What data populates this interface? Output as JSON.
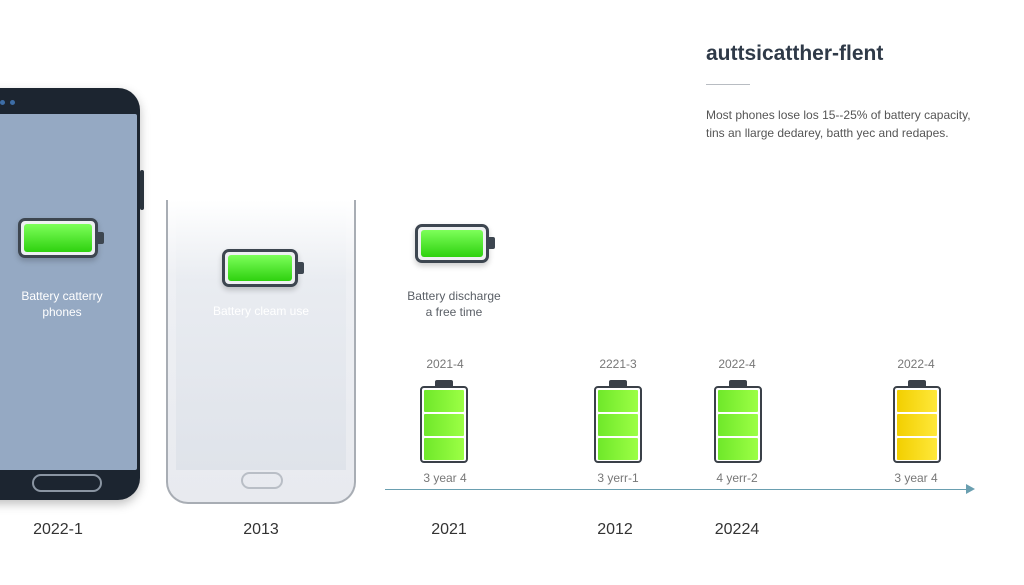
{
  "header": {
    "title": "auttsicatther-flent",
    "description_line1": "Most phones lose los 15--25% of battery capacity,",
    "description_line2": "tins an llarge dedarey, batth yec and redapes."
  },
  "phones": [
    {
      "label_line1": "Battery catterry",
      "label_line2": "phones"
    },
    {
      "label_line1": "Battery cleam use"
    }
  ],
  "standalone": {
    "label_line1": "Battery discharge",
    "label_line2": "a free time"
  },
  "batteries": [
    {
      "year_top": "2021-4",
      "age": "3 year 4",
      "color": "#7be82c"
    },
    {
      "year_top": "2221-3",
      "age": "3 yerr-1",
      "color": "#7be82c"
    },
    {
      "year_top": "2022-4",
      "age": "4 yerr-2",
      "color": "#7be82c"
    },
    {
      "year_top": "2022-4",
      "age": "3 year 4",
      "color": "#f5d80f"
    }
  ],
  "axis_years": [
    "2022-1",
    "2013",
    "2021",
    "2012",
    "20224"
  ]
}
